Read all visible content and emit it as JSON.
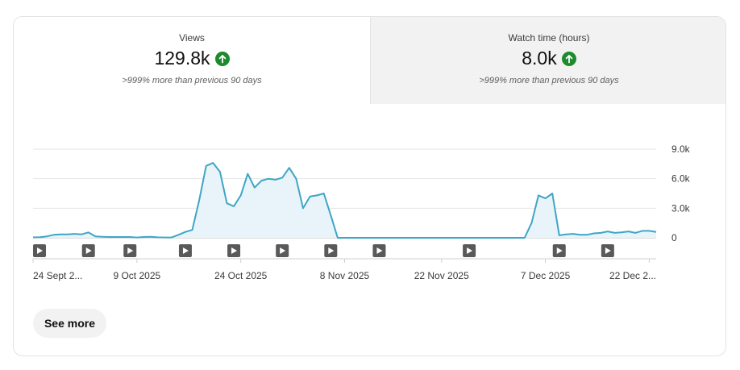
{
  "metrics": [
    {
      "title": "Views",
      "value": "129.8k",
      "comparison": ">999% more than previous 90 days",
      "trend_icon": "arrow-up-icon"
    },
    {
      "title": "Watch time (hours)",
      "value": "8.0k",
      "comparison": ">999% more than previous 90 days",
      "trend_icon": "arrow-up-icon"
    }
  ],
  "see_more_label": "See more",
  "colors": {
    "line": "#3ea6c5",
    "fill": "#e8f4f9",
    "up": "#1e8a2e",
    "marker": "#595959"
  },
  "chart_data": {
    "type": "area",
    "title": "Views",
    "ylim": [
      0,
      9000
    ],
    "yticks": [
      {
        "v": 9000,
        "label": "9.0k"
      },
      {
        "v": 6000,
        "label": "6.0k"
      },
      {
        "v": 3000,
        "label": "3.0k"
      },
      {
        "v": 0,
        "label": "0"
      }
    ],
    "xticks": [
      {
        "i": 0,
        "label": "24 Sept 2..."
      },
      {
        "i": 15,
        "label": "9 Oct 2025"
      },
      {
        "i": 30,
        "label": "24 Oct 2025"
      },
      {
        "i": 45,
        "label": "8 Nov 2025"
      },
      {
        "i": 59,
        "label": "22 Nov 2025"
      },
      {
        "i": 74,
        "label": "7 Dec 2025"
      },
      {
        "i": 89,
        "label": "22 Dec 2..."
      }
    ],
    "video_markers": [
      0,
      8,
      14,
      22,
      29,
      36,
      43,
      50,
      63,
      76,
      83
    ],
    "values": [
      50,
      60,
      150,
      300,
      350,
      350,
      400,
      350,
      550,
      150,
      100,
      80,
      80,
      80,
      80,
      30,
      80,
      100,
      50,
      30,
      30,
      300,
      600,
      800,
      3800,
      7300,
      7600,
      6700,
      3500,
      3200,
      4300,
      6500,
      5100,
      5800,
      6000,
      5900,
      6100,
      7100,
      6000,
      3000,
      4200,
      4300,
      4500,
      2300,
      0,
      0,
      0,
      0,
      0,
      0,
      0,
      0,
      0,
      0,
      0,
      0,
      0,
      0,
      0,
      0,
      0,
      0,
      0,
      0,
      0,
      0,
      0,
      0,
      0,
      0,
      0,
      0,
      1500,
      4300,
      4000,
      4500,
      250,
      350,
      400,
      300,
      300,
      450,
      500,
      650,
      500,
      550,
      650,
      500,
      700,
      700,
      600
    ]
  }
}
